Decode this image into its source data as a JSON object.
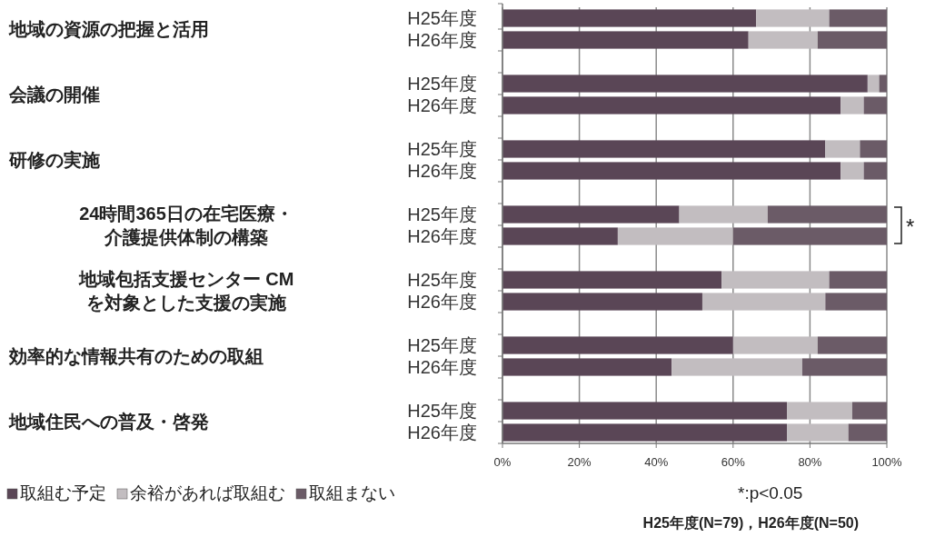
{
  "chart_data": {
    "type": "bar",
    "orientation": "horizontal",
    "stacked": true,
    "categories": [
      "H25年度",
      "H26年度",
      null,
      "H25年度",
      "H26年度",
      null,
      "H25年度",
      "H26年度",
      null,
      "H25年度",
      "H26年度",
      null,
      "H25年度",
      "H26年度",
      null,
      "H25年度",
      "H26年度",
      null,
      "H25年度",
      "H26年度"
    ],
    "series": [
      {
        "name": "取組む予定",
        "color": "#5a4656",
        "values": [
          66,
          64,
          null,
          95,
          88,
          null,
          84,
          88,
          null,
          46,
          30,
          null,
          57,
          52,
          null,
          60,
          44,
          null,
          74,
          74
        ]
      },
      {
        "name": "余裕があれば取組む",
        "color": "#c2bdc0",
        "values": [
          19,
          18,
          null,
          3,
          6,
          null,
          9,
          6,
          null,
          23,
          30,
          null,
          28,
          32,
          null,
          22,
          34,
          null,
          17,
          16
        ]
      },
      {
        "name": "取組まない",
        "color": "#6b5b67",
        "values": [
          15,
          18,
          null,
          2,
          6,
          null,
          7,
          6,
          null,
          31,
          40,
          null,
          15,
          16,
          null,
          18,
          22,
          null,
          9,
          10
        ]
      }
    ],
    "xlim": [
      0,
      100
    ],
    "xticks": [
      {
        "value": 0,
        "label": "0%"
      },
      {
        "value": 20,
        "label": "20%"
      },
      {
        "value": 40,
        "label": "40%"
      },
      {
        "value": 60,
        "label": "60%"
      },
      {
        "value": 80,
        "label": "80%"
      },
      {
        "value": 100,
        "label": "100%"
      }
    ],
    "grid": "x",
    "legend": "bottom",
    "annotations": [
      "地域の資源の把握と活用",
      "会議の開催",
      "研修の実施",
      "24時間365日の在宅医療・介護提供体制の構築",
      "地域包括支援センター CMを対象とした支援の実施",
      "効率的な情報共有のための取組",
      "地域住民への普及・啓発",
      "*",
      "*:p<0.05",
      "H25年度(N=79)，H26年度(N=50)"
    ]
  }
}
